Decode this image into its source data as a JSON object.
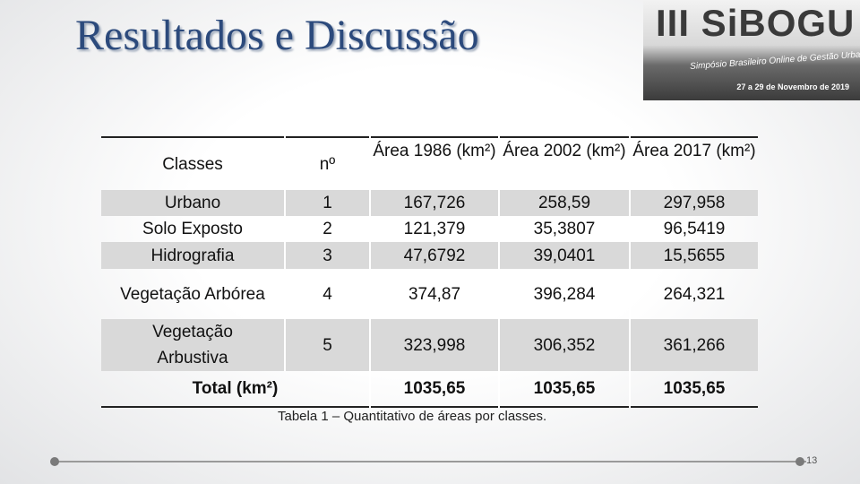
{
  "title": "Resultados e Discussão",
  "logo": {
    "name": "III SiBOGU",
    "subtitle": "Simpósio Brasileiro Online de Gestão Urbana",
    "date": "27 a 29 de Novembro de 2019"
  },
  "table": {
    "header": [
      "Classes",
      "nº",
      "Área 1986 (km²)",
      "Área 2002 (km²)",
      "Área 2017 (km²)"
    ],
    "rows": [
      [
        "Urbano",
        "1",
        "167,726",
        "258,59",
        "297,958"
      ],
      [
        "Solo Exposto",
        "2",
        "121,379",
        "35,3807",
        "96,5419"
      ],
      [
        "Hidrografia",
        "3",
        "47,6792",
        "39,0401",
        "15,5655"
      ],
      [
        "Vegetação Arbórea",
        "4",
        "374,87",
        "396,284",
        "264,321"
      ],
      [
        "Vegetação Arbustiva",
        "5",
        "323,998",
        "306,352",
        "361,266"
      ]
    ],
    "total": {
      "label": "Total (km²)",
      "values": [
        "1035,65",
        "1035,65",
        "1035,65"
      ]
    },
    "caption": "Tabela 1 – Quantitativo de áreas por classes."
  },
  "page_number": "13"
}
